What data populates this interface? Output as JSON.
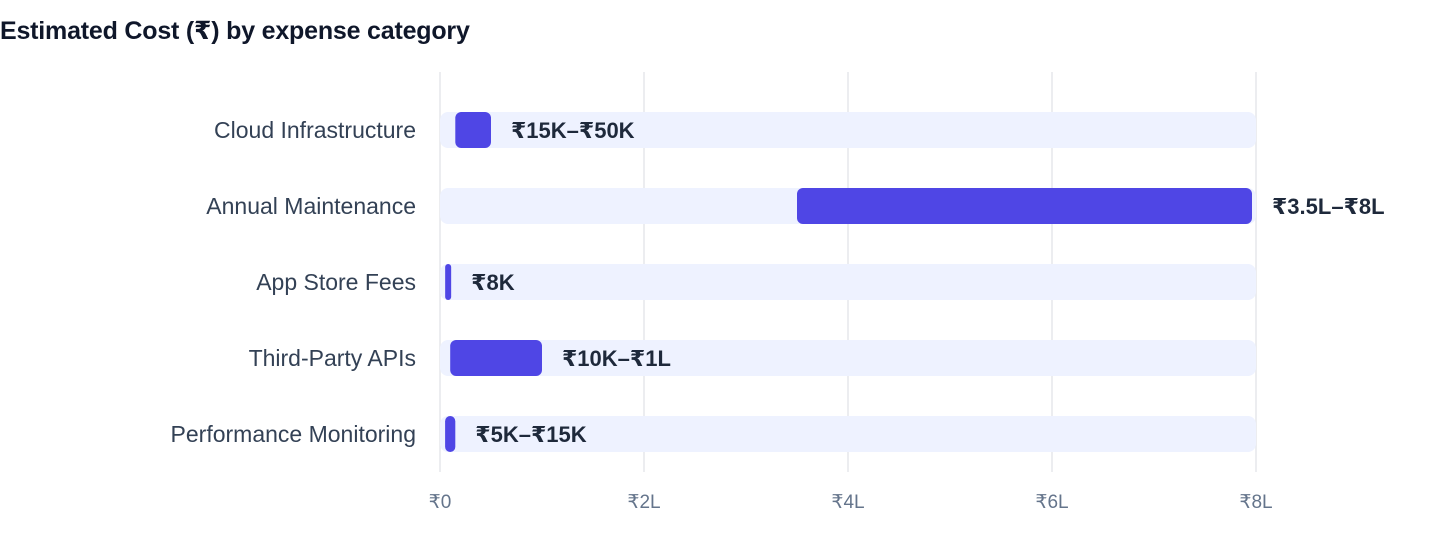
{
  "chart_data": {
    "type": "bar",
    "orientation": "horizontal",
    "title": "Estimated Cost (₹) by expense category",
    "xlabel": "",
    "ylabel": "",
    "xlim": [
      0,
      800000
    ],
    "grid": true,
    "legend": "none",
    "categories": [
      "Cloud Infrastructure",
      "Annual Maintenance",
      "App Store Fees",
      "Third-Party APIs",
      "Performance Monitoring"
    ],
    "ranges": [
      {
        "low": 15000,
        "high": 50000
      },
      {
        "low": 350000,
        "high": 800000
      },
      {
        "low": 8000,
        "high": 8000
      },
      {
        "low": 10000,
        "high": 100000
      },
      {
        "low": 5000,
        "high": 15000
      }
    ],
    "value_labels": [
      "₹15K–₹50K",
      "₹3.5L–₹8L",
      "₹8K",
      "₹10K–₹1L",
      "₹5K–₹15K"
    ],
    "x_ticks": [
      {
        "value": 0,
        "label": "₹0"
      },
      {
        "value": 200000,
        "label": "₹2L"
      },
      {
        "value": 400000,
        "label": "₹4L"
      },
      {
        "value": 600000,
        "label": "₹6L"
      },
      {
        "value": 800000,
        "label": "₹8L"
      }
    ],
    "colors": {
      "bar": "#4f46e5",
      "track": "#eef2ff",
      "grid": "#e5e7eb"
    }
  }
}
